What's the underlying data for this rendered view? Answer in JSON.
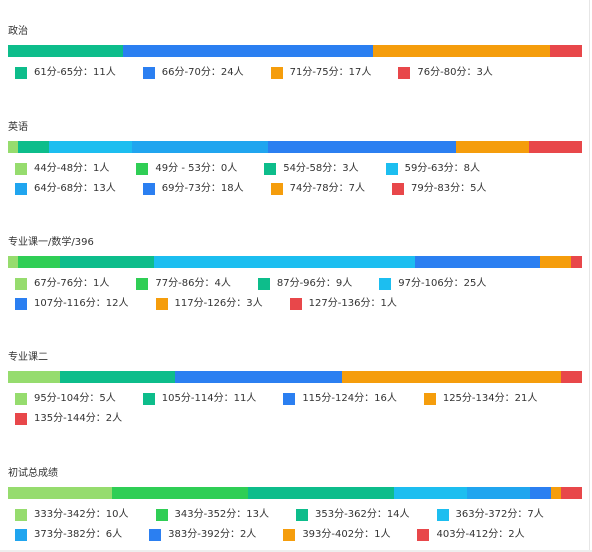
{
  "colors": {
    "c_light_green": "#96dc6e",
    "c_green": "#2fce55",
    "c_teal": "#0dbd8b",
    "c_sky": "#1cbef0",
    "c_cyan_blue": "#20a5ef",
    "c_blue": "#2b7ff1",
    "c_orange": "#f59d0c",
    "c_red": "#e8474a"
  },
  "chart_data": [
    {
      "type": "bar",
      "stacked": "horizontal-100%",
      "title": "政治",
      "series": [
        {
          "name": "61分-65分",
          "value": 11,
          "color": "#0dbd8b",
          "label": "61分-65分：11人"
        },
        {
          "name": "66分-70分",
          "value": 24,
          "color": "#2b7ff1",
          "label": "66分-70分：24人"
        },
        {
          "name": "71分-75分",
          "value": 17,
          "color": "#f59d0c",
          "label": "71分-75分：17人"
        },
        {
          "name": "76分-80分",
          "value": 3,
          "color": "#e8474a",
          "label": "76分-80分：3人"
        }
      ]
    },
    {
      "type": "bar",
      "stacked": "horizontal-100%",
      "title": "英语",
      "series": [
        {
          "name": "44分-48分",
          "value": 1,
          "color": "#96dc6e",
          "label": "44分-48分：1人"
        },
        {
          "name": "49分 - 53分",
          "value": 0,
          "color": "#2fce55",
          "label": "49分 - 53分：0人"
        },
        {
          "name": "54分-58分",
          "value": 3,
          "color": "#0dbd8b",
          "label": "54分-58分：3人"
        },
        {
          "name": "59分-63分",
          "value": 8,
          "color": "#1cbef0",
          "label": "59分-63分：8人"
        },
        {
          "name": "64分-68分",
          "value": 13,
          "color": "#20a5ef",
          "label": "64分-68分：13人"
        },
        {
          "name": "69分-73分",
          "value": 18,
          "color": "#2b7ff1",
          "label": "69分-73分：18人"
        },
        {
          "name": "74分-78分",
          "value": 7,
          "color": "#f59d0c",
          "label": "74分-78分：7人"
        },
        {
          "name": "79分-83分",
          "value": 5,
          "color": "#e8474a",
          "label": "79分-83分：5人"
        }
      ]
    },
    {
      "type": "bar",
      "stacked": "horizontal-100%",
      "title": "专业课一/数学/396",
      "series": [
        {
          "name": "67分-76分",
          "value": 1,
          "color": "#96dc6e",
          "label": "67分-76分：1人"
        },
        {
          "name": "77分-86分",
          "value": 4,
          "color": "#2fce55",
          "label": "77分-86分：4人"
        },
        {
          "name": "87分-96分",
          "value": 9,
          "color": "#0dbd8b",
          "label": "87分-96分：9人"
        },
        {
          "name": "97分-106分",
          "value": 25,
          "color": "#1cbef0",
          "label": "97分-106分：25人"
        },
        {
          "name": "107分-116分",
          "value": 12,
          "color": "#2b7ff1",
          "label": "107分-116分：12人"
        },
        {
          "name": "117分-126分",
          "value": 3,
          "color": "#f59d0c",
          "label": "117分-126分：3人"
        },
        {
          "name": "127分-136分",
          "value": 1,
          "color": "#e8474a",
          "label": "127分-136分：1人"
        }
      ]
    },
    {
      "type": "bar",
      "stacked": "horizontal-100%",
      "title": "专业课二",
      "series": [
        {
          "name": "95分-104分",
          "value": 5,
          "color": "#96dc6e",
          "label": "95分-104分：5人"
        },
        {
          "name": "105分-114分",
          "value": 11,
          "color": "#0dbd8b",
          "label": "105分-114分：11人"
        },
        {
          "name": "115分-124分",
          "value": 16,
          "color": "#2b7ff1",
          "label": "115分-124分：16人"
        },
        {
          "name": "125分-134分",
          "value": 21,
          "color": "#f59d0c",
          "label": "125分-134分：21人"
        },
        {
          "name": "135分-144分",
          "value": 2,
          "color": "#e8474a",
          "label": "135分-144分：2人"
        }
      ]
    },
    {
      "type": "bar",
      "stacked": "horizontal-100%",
      "title": "初试总成绩",
      "series": [
        {
          "name": "333分-342分",
          "value": 10,
          "color": "#96dc6e",
          "label": "333分-342分：10人"
        },
        {
          "name": "343分-352分",
          "value": 13,
          "color": "#2fce55",
          "label": "343分-352分：13人"
        },
        {
          "name": "353分-362分",
          "value": 14,
          "color": "#0dbd8b",
          "label": "353分-362分：14人"
        },
        {
          "name": "363分-372分",
          "value": 7,
          "color": "#1cbef0",
          "label": "363分-372分：7人"
        },
        {
          "name": "373分-382分",
          "value": 6,
          "color": "#20a5ef",
          "label": "373分-382分：6人"
        },
        {
          "name": "383分-392分",
          "value": 2,
          "color": "#2b7ff1",
          "label": "383分-392分：2人"
        },
        {
          "name": "393分-402分",
          "value": 1,
          "color": "#f59d0c",
          "label": "393分-402分：1人"
        },
        {
          "name": "403分-412分",
          "value": 2,
          "color": "#e8474a",
          "label": "403分-412分：2人"
        }
      ]
    }
  ]
}
